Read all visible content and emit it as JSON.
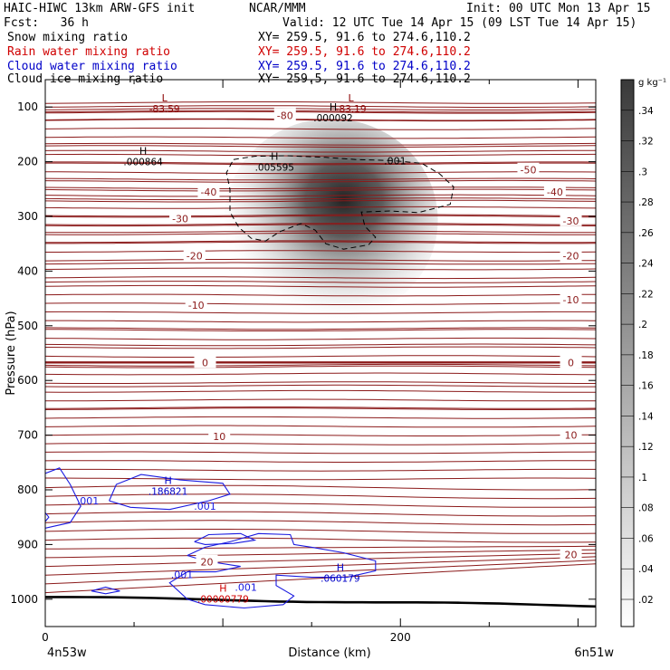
{
  "header": {
    "line1_left": "HAIC-HIWC 13km ARW-GFS init",
    "line1_mid": "NCAR/MMM",
    "line1_right": "Init: 00 UTC Mon 13 Apr 15",
    "line2_left": "Fcst:   36 h",
    "line2_right": "Valid: 12 UTC Tue 14 Apr 15 (09 LST Tue 14 Apr 15)",
    "fields": [
      {
        "name": "Snow mixing ratio",
        "xy": "XY= 259.5, 91.6 to 274.6,110.2",
        "color": "#000000"
      },
      {
        "name": "Rain water mixing ratio",
        "xy": "XY= 259.5, 91.6 to 274.6,110.2",
        "color": "#d00000"
      },
      {
        "name": "Cloud water mixing ratio",
        "xy": "XY= 259.5, 91.6 to 274.6,110.2",
        "color": "#0000c8"
      },
      {
        "name": "Cloud ice mixing ratio",
        "xy": "XY= 259.5, 91.6 to 274.6,110.2",
        "color": "#000000"
      }
    ]
  },
  "chart_data": {
    "type": "contour",
    "xlabel": "Distance (km)",
    "ylabel": "Pressure (hPa)",
    "xlim": [
      0,
      310
    ],
    "ylim": [
      1050,
      50
    ],
    "x_ticks": [
      0,
      200
    ],
    "y_ticks": [
      100,
      200,
      300,
      400,
      500,
      600,
      700,
      800,
      900,
      1000
    ],
    "x_endpoint_labels": [
      "4n53w",
      "6n51w"
    ],
    "colorbar": {
      "unit": "g kg⁻¹",
      "ticks": [
        ".02",
        ".04",
        ".06",
        ".08",
        ".1",
        ".12",
        ".14",
        ".16",
        ".18",
        ".2",
        ".22",
        ".24",
        ".26",
        ".28",
        ".3",
        ".32",
        ".34"
      ]
    },
    "temperature_contours": [
      {
        "label": "-80",
        "x": 135,
        "p": 115
      },
      {
        "label": "-50",
        "x": 272,
        "p": 215
      },
      {
        "label": "-40",
        "x": 92,
        "p": 255
      },
      {
        "label": "-40",
        "x": 287,
        "p": 255
      },
      {
        "label": "-30",
        "x": 76,
        "p": 304
      },
      {
        "label": "-30",
        "x": 296,
        "p": 308
      },
      {
        "label": "-20",
        "x": 84,
        "p": 372
      },
      {
        "label": "-20",
        "x": 296,
        "p": 372
      },
      {
        "label": "-10",
        "x": 85,
        "p": 462
      },
      {
        "label": "-10",
        "x": 296,
        "p": 452
      },
      {
        "label": "0",
        "x": 90,
        "p": 567
      },
      {
        "label": "0",
        "x": 296,
        "p": 567
      },
      {
        "label": "10",
        "x": 98,
        "p": 702
      },
      {
        "label": "10",
        "x": 296,
        "p": 700
      },
      {
        "label": "20",
        "x": 91,
        "p": 932
      },
      {
        "label": "20",
        "x": 296,
        "p": 918
      }
    ],
    "extrema": [
      {
        "kind": "L",
        "value": "-83.59",
        "x": 60,
        "p": 96,
        "color": "#8b0000"
      },
      {
        "kind": "L",
        "value": "-83.19",
        "x": 165,
        "p": 96,
        "color": "#8b0000"
      },
      {
        "kind": "H",
        "value": ".000092",
        "x": 155,
        "p": 113,
        "color": "#000000"
      },
      {
        "kind": "H",
        "value": ".000864",
        "x": 48,
        "p": 193,
        "color": "#000000"
      },
      {
        "kind": "H",
        "value": ".005595",
        "x": 122,
        "p": 203,
        "color": "#000000"
      },
      {
        "kind": "H",
        "value": ".186821",
        "x": 62,
        "p": 796,
        "color": "#0000c8"
      },
      {
        "kind": "H",
        "value": ".060179",
        "x": 159,
        "p": 955,
        "color": "#0000c8"
      },
      {
        "kind": "H",
        "value": ".00000779",
        "x": 93,
        "p": 993,
        "color": "#d00000"
      }
    ],
    "ice_contour_label": {
      "label": ".001",
      "x": 197,
      "p": 198
    },
    "cloud_water_labels": [
      {
        "label": ".001",
        "x": 24,
        "p": 820
      },
      {
        "label": ".001",
        "x": 90,
        "p": 830
      },
      {
        "label": ".001",
        "x": 77,
        "p": 955
      },
      {
        "label": ".001",
        "x": 113,
        "p": 978
      }
    ],
    "snow_max": {
      "x": 165,
      "p": 310,
      "value_max": 0.34
    }
  }
}
